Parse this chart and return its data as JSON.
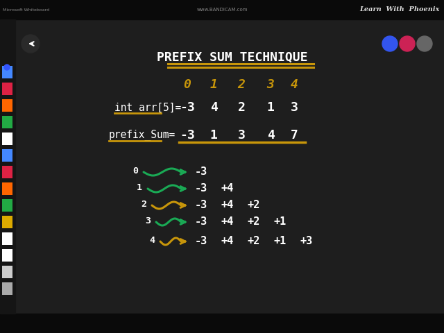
{
  "bg_color": "#1c1c1c",
  "top_bar_color": "#0a0a0a",
  "title_text": "PREFIX SUM TECHNIQUE",
  "title_color": "#ffffff",
  "title_underline_color": "#c8960a",
  "indices": [
    "0",
    "1",
    "2",
    "3",
    "4"
  ],
  "indices_color": "#c8960a",
  "arr_label": "int arr[5]=",
  "arr_values": [
    "-3",
    "4",
    "2",
    "1",
    "3"
  ],
  "prefix_label": "prefix_Sum=",
  "prefix_values": [
    "-3",
    "1",
    "3",
    "4",
    "7"
  ],
  "label_color": "#ffffff",
  "value_color": "#ffffff",
  "underline_color": "#c8960a",
  "rows": [
    {
      "label": "0",
      "arrow_color": "#1aaa55",
      "values": [
        "-3"
      ]
    },
    {
      "label": "1",
      "arrow_color": "#1aaa55",
      "values": [
        "-3",
        "+4"
      ]
    },
    {
      "label": "2",
      "arrow_color": "#c8960a",
      "values": [
        "-3",
        "+4",
        "+2"
      ]
    },
    {
      "label": "3",
      "arrow_color": "#1aaa55",
      "values": [
        "-3",
        "+4",
        "+2",
        "+1"
      ]
    },
    {
      "label": "4",
      "arrow_color": "#c8960a",
      "values": [
        "-3",
        "+4",
        "+2",
        "+1",
        "+3"
      ]
    }
  ],
  "watermark_text": "Learn  With  Phoenix",
  "ms_whiteboard": "Microsoft Whiteboard",
  "bandicam_text": "www.BANDICAM.com",
  "btn_blue": "#3355ee",
  "btn_pink": "#cc2255",
  "btn_gray": "#666666",
  "toolbar_colors": [
    "#4488ff",
    "#dd2244",
    "#ff6600",
    "#22aa44",
    "#ffffff",
    "#4488ff",
    "#dd2244",
    "#ff6600",
    "#22aa44",
    "#ddaa00",
    "#ffffff",
    "#ffffff",
    "#cccccc",
    "#aaaaaa"
  ]
}
